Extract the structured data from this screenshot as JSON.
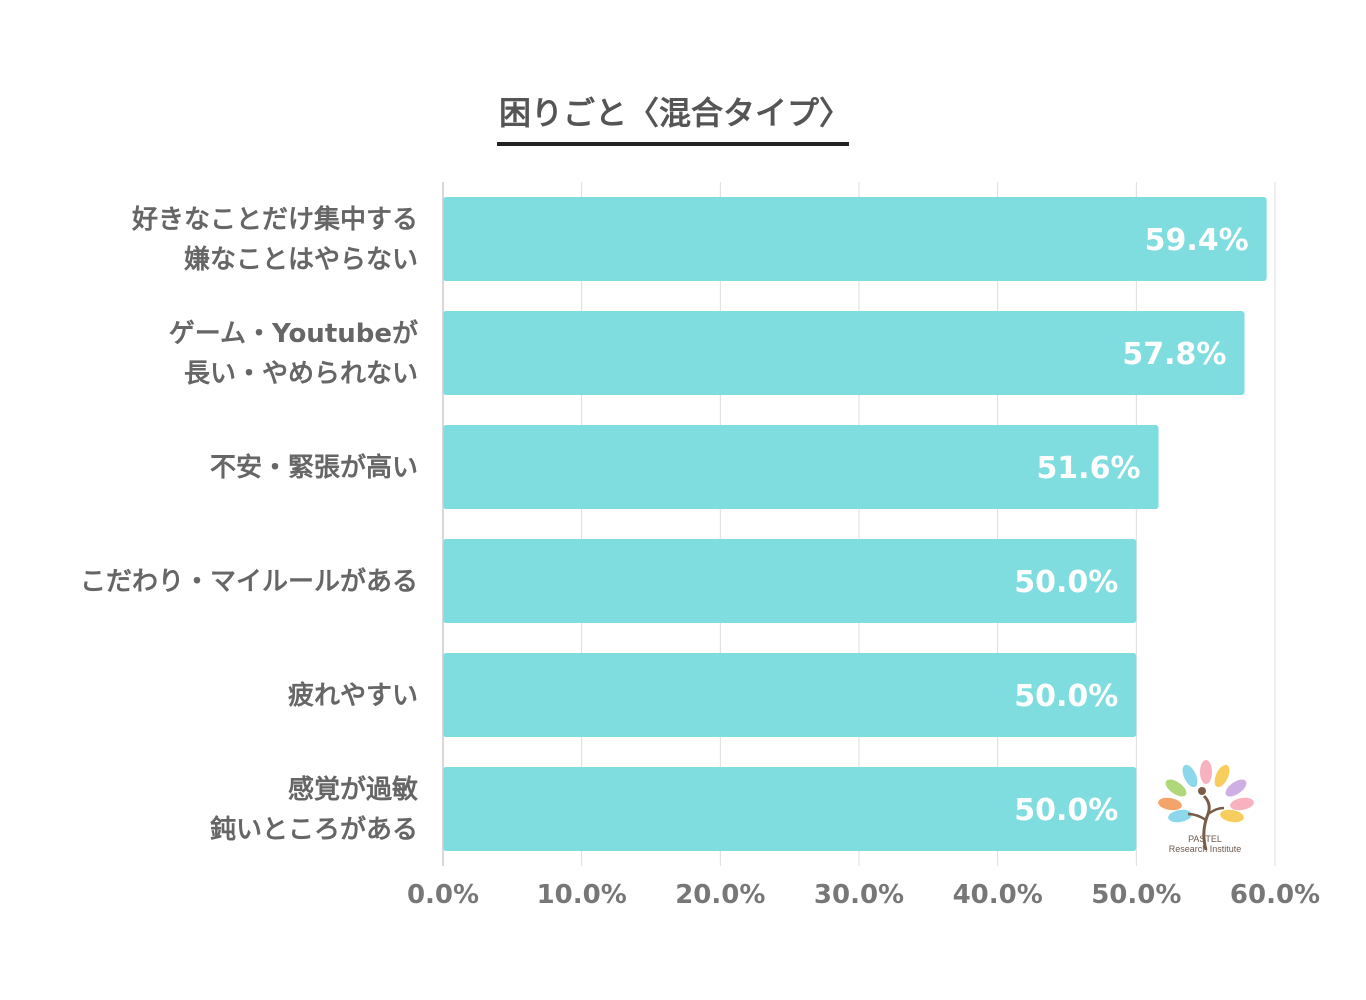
{
  "chart_data": {
    "type": "bar",
    "orientation": "horizontal",
    "title": "困りごと〈混合タイプ〉",
    "categories": [
      [
        "好きなことだけ集中する",
        "嫌なことはやらない"
      ],
      [
        "ゲーム・Youtubeが",
        "長い・やめられない"
      ],
      [
        "不安・緊張が高い"
      ],
      [
        "こだわり・マイルールがある"
      ],
      [
        "疲れやすい"
      ],
      [
        "感覚が過敏",
        "鈍いところがある"
      ]
    ],
    "values": [
      59.4,
      57.8,
      51.6,
      50.0,
      50.0,
      50.0
    ],
    "value_labels": [
      "59.4%",
      "57.8%",
      "51.6%",
      "50.0%",
      "50.0%",
      "50.0%"
    ],
    "xlim": [
      0,
      60
    ],
    "xticks": [
      0,
      10,
      20,
      30,
      40,
      50,
      60
    ],
    "xtick_labels": [
      "0.0%",
      "10.0%",
      "20.0%",
      "30.0%",
      "40.0%",
      "50.0%",
      "60.0%"
    ],
    "grid": true,
    "bar_color": "#7fdcdf",
    "label_color": "#ffffff",
    "text_color": "#666666"
  },
  "logo": {
    "line1": "PASTEL",
    "line2": "Research Institute",
    "leaf_colors": [
      "#f7a8b8",
      "#7fd3e8",
      "#f6c84c",
      "#a7d36b",
      "#c9a6e0",
      "#f39a5a"
    ]
  }
}
